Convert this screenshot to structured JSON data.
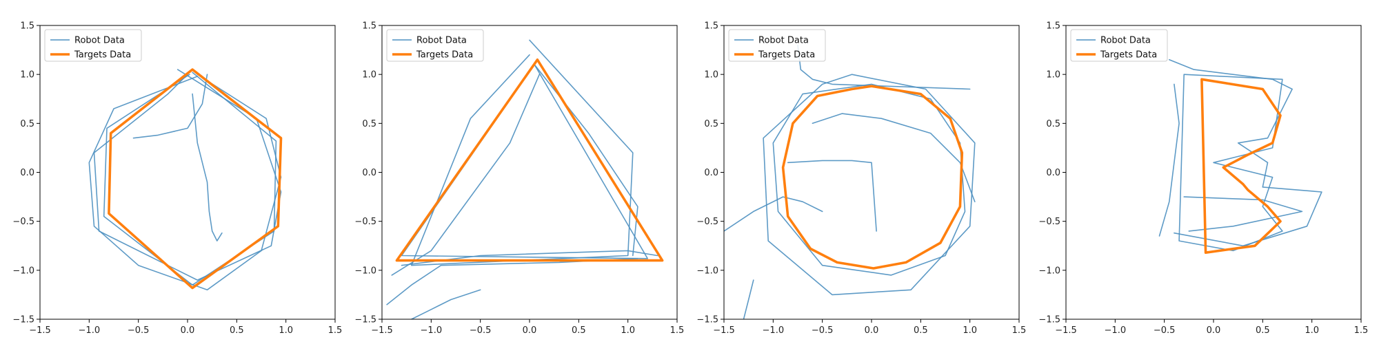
{
  "colors": {
    "robot": "#4b8fc0",
    "target": "#ff7f0e",
    "axis": "#000000",
    "legend_border": "#cccccc"
  },
  "chart_data": [
    {
      "type": "line",
      "title": "",
      "xlabel": "",
      "ylabel": "",
      "xlim": [
        -1.5,
        1.5
      ],
      "ylim": [
        -1.5,
        1.5
      ],
      "xticks": [
        -1.5,
        -1.0,
        -0.5,
        0.0,
        0.5,
        1.0,
        1.5
      ],
      "yticks": [
        -1.5,
        -1.0,
        -0.5,
        0.0,
        0.5,
        1.0,
        1.5
      ],
      "tick_labels_x": [
        "−1.5",
        "−1.0",
        "−0.5",
        "0.0",
        "0.5",
        "1.0",
        "1.5"
      ],
      "tick_labels_y": [
        "−1.5",
        "−1.0",
        "−0.5",
        "0.0",
        "0.5",
        "1.0",
        "1.5"
      ],
      "grid": false,
      "legend": {
        "placement": "top-left",
        "entries": [
          "Robot Data",
          "Targets Data"
        ]
      },
      "series": [
        {
          "name": "Targets Data",
          "kind": "target",
          "x": [
            0.05,
            0.95,
            0.92,
            0.05,
            -0.8,
            -0.78,
            0.05
          ],
          "y": [
            1.05,
            0.35,
            -0.55,
            -1.18,
            -0.42,
            0.4,
            1.05
          ]
        },
        {
          "name": "Robot Data",
          "kind": "robot",
          "x": [
            0.05,
            0.9,
            0.88,
            0.05,
            -0.85,
            -0.82,
            0.02
          ],
          "y": [
            1.02,
            0.32,
            -0.6,
            -1.15,
            -0.45,
            0.45,
            1.0
          ]
        },
        {
          "name": "Robot Data",
          "kind": "robot",
          "x": [
            -0.1,
            0.7,
            0.95,
            0.85,
            0.1,
            -0.9,
            -0.95,
            -0.2,
            0.0
          ],
          "y": [
            1.05,
            0.55,
            -0.2,
            -0.75,
            -1.1,
            -0.6,
            0.2,
            0.8,
            1.0
          ]
        },
        {
          "name": "Robot Data",
          "kind": "robot",
          "x": [
            0.1,
            -0.75,
            -1.0,
            -0.95,
            -0.5,
            0.2,
            0.75,
            0.95,
            0.8,
            0.1
          ],
          "y": [
            0.98,
            0.65,
            0.1,
            -0.55,
            -0.95,
            -1.2,
            -0.8,
            -0.05,
            0.55,
            1.0
          ]
        },
        {
          "name": "Robot Data",
          "kind": "robot",
          "x": [
            0.05,
            0.1,
            0.2,
            0.22,
            0.25,
            0.3,
            0.35
          ],
          "y": [
            0.8,
            0.3,
            -0.1,
            -0.4,
            -0.6,
            -0.7,
            -0.62
          ]
        },
        {
          "name": "Robot Data",
          "kind": "robot",
          "x": [
            -0.55,
            -0.3,
            0.0,
            0.15,
            0.2
          ],
          "y": [
            0.35,
            0.38,
            0.45,
            0.7,
            1.0
          ]
        }
      ]
    },
    {
      "type": "line",
      "title": "",
      "xlabel": "",
      "ylabel": "",
      "xlim": [
        -1.5,
        1.5
      ],
      "ylim": [
        -1.5,
        1.5
      ],
      "xticks": [
        -1.5,
        -1.0,
        -0.5,
        0.0,
        0.5,
        1.0,
        1.5
      ],
      "yticks": [
        -1.5,
        -1.0,
        -0.5,
        0.0,
        0.5,
        1.0,
        1.5
      ],
      "tick_labels_x": [
        "−1.5",
        "−1.0",
        "−0.5",
        "0.0",
        "0.5",
        "1.0",
        "1.5"
      ],
      "tick_labels_y": [
        "−1.5",
        "−1.0",
        "−0.5",
        "0.0",
        "0.5",
        "1.0",
        "1.5"
      ],
      "grid": false,
      "legend": {
        "placement": "top-left",
        "entries": [
          "Robot Data",
          "Targets Data"
        ]
      },
      "series": [
        {
          "name": "Targets Data",
          "kind": "target",
          "x": [
            0.08,
            1.35,
            -1.35,
            0.08
          ],
          "y": [
            1.15,
            -0.9,
            -0.9,
            1.15
          ]
        },
        {
          "name": "Robot Data",
          "kind": "robot",
          "x": [
            0.05,
            1.2,
            -1.3,
            0.05
          ],
          "y": [
            1.1,
            -0.88,
            -0.85,
            1.1
          ]
        },
        {
          "name": "Robot Data",
          "kind": "robot",
          "x": [
            0.0,
            1.05,
            1.0,
            -1.2,
            -0.6,
            0.0
          ],
          "y": [
            1.35,
            0.2,
            -0.85,
            -0.95,
            0.55,
            1.2
          ]
        },
        {
          "name": "Robot Data",
          "kind": "robot",
          "x": [
            -1.45,
            -1.2,
            -0.9,
            0.3,
            1.1
          ],
          "y": [
            -1.35,
            -1.15,
            -0.95,
            -0.92,
            -0.88
          ]
        },
        {
          "name": "Robot Data",
          "kind": "robot",
          "x": [
            0.05,
            0.6,
            1.1,
            1.05
          ],
          "y": [
            1.1,
            0.4,
            -0.35,
            -0.85
          ]
        },
        {
          "name": "Robot Data",
          "kind": "robot",
          "x": [
            -1.4,
            -1.0,
            -0.2,
            0.1
          ],
          "y": [
            -1.05,
            -0.8,
            0.3,
            1.0
          ]
        },
        {
          "name": "Robot Data",
          "kind": "robot",
          "x": [
            -1.3,
            -0.5,
            0.4,
            1.0,
            1.3
          ],
          "y": [
            -0.95,
            -0.85,
            -0.82,
            -0.8,
            -0.85
          ]
        },
        {
          "name": "Robot Data",
          "kind": "robot",
          "x": [
            -1.2,
            -1.0,
            -0.8,
            -0.5
          ],
          "y": [
            -1.5,
            -1.4,
            -1.3,
            -1.2
          ]
        }
      ]
    },
    {
      "type": "line",
      "title": "",
      "xlabel": "",
      "ylabel": "",
      "xlim": [
        -1.5,
        1.5
      ],
      "ylim": [
        -1.5,
        1.5
      ],
      "xticks": [
        -1.5,
        -1.0,
        -0.5,
        0.0,
        0.5,
        1.0,
        1.5
      ],
      "yticks": [
        -1.5,
        -1.0,
        -0.5,
        0.0,
        0.5,
        1.0,
        1.5
      ],
      "tick_labels_x": [
        "−1.5",
        "−1.0",
        "−0.5",
        "0.0",
        "0.5",
        "1.0",
        "1.5"
      ],
      "tick_labels_y": [
        "−1.5",
        "−1.0",
        "−0.5",
        "0.0",
        "0.5",
        "1.0",
        "1.5"
      ],
      "grid": false,
      "legend": {
        "placement": "top-left",
        "entries": [
          "Robot Data",
          "Targets Data"
        ]
      },
      "series": [
        {
          "name": "Targets Data",
          "kind": "target",
          "x": [
            0.0,
            0.5,
            0.8,
            0.92,
            0.9,
            0.7,
            0.35,
            0.02,
            -0.35,
            -0.62,
            -0.85,
            -0.9,
            -0.8,
            -0.55,
            -0.2,
            0.0
          ],
          "y": [
            0.88,
            0.8,
            0.55,
            0.2,
            -0.35,
            -0.72,
            -0.92,
            -0.98,
            -0.92,
            -0.78,
            -0.45,
            0.05,
            0.5,
            0.78,
            0.85,
            0.88
          ]
        },
        {
          "name": "Robot Data",
          "kind": "robot",
          "x": [
            0.0,
            0.6,
            0.9,
            0.95,
            0.75,
            0.2,
            -0.5,
            -0.95,
            -1.0,
            -0.7,
            0.0
          ],
          "y": [
            0.9,
            0.75,
            0.3,
            -0.4,
            -0.85,
            -1.05,
            -0.95,
            -0.4,
            0.3,
            0.8,
            0.9
          ]
        },
        {
          "name": "Robot Data",
          "kind": "robot",
          "x": [
            -0.2,
            0.55,
            1.05,
            1.0,
            0.4,
            -0.4,
            -1.05,
            -1.1,
            -0.5,
            -0.2
          ],
          "y": [
            1.0,
            0.85,
            0.3,
            -0.55,
            -1.2,
            -1.25,
            -0.7,
            0.35,
            0.9,
            1.0
          ]
        },
        {
          "name": "Robot Data",
          "kind": "robot",
          "x": [
            -0.85,
            -0.5,
            -0.2,
            0.0,
            0.05
          ],
          "y": [
            0.1,
            0.12,
            0.12,
            0.1,
            -0.6
          ]
        },
        {
          "name": "Robot Data",
          "kind": "robot",
          "x": [
            -1.5,
            -1.2,
            -0.9,
            -0.7,
            -0.5
          ],
          "y": [
            -0.6,
            -0.4,
            -0.25,
            -0.3,
            -0.4
          ]
        },
        {
          "name": "Robot Data",
          "kind": "robot",
          "x": [
            -0.6,
            -0.3,
            0.1,
            0.6,
            0.9,
            1.05
          ],
          "y": [
            0.5,
            0.6,
            0.55,
            0.4,
            0.1,
            -0.3
          ]
        },
        {
          "name": "Robot Data",
          "kind": "robot",
          "x": [
            -0.75,
            -0.72,
            -0.6,
            -0.4,
            1.0
          ],
          "y": [
            1.3,
            1.05,
            0.95,
            0.9,
            0.85
          ]
        },
        {
          "name": "Robot Data",
          "kind": "robot",
          "x": [
            -1.2,
            -1.25,
            -1.3
          ],
          "y": [
            -1.1,
            -1.3,
            -1.5
          ]
        }
      ]
    },
    {
      "type": "line",
      "title": "",
      "xlabel": "",
      "ylabel": "",
      "xlim": [
        -1.5,
        1.5
      ],
      "ylim": [
        -1.5,
        1.5
      ],
      "xticks": [
        -1.5,
        -1.0,
        -0.5,
        0.0,
        0.5,
        1.0,
        1.5
      ],
      "yticks": [
        -1.5,
        -1.0,
        -0.5,
        0.0,
        0.5,
        1.0,
        1.5
      ],
      "tick_labels_x": [
        "−1.5",
        "−1.0",
        "−0.5",
        "0.0",
        "0.5",
        "1.0",
        "1.5"
      ],
      "tick_labels_y": [
        "−1.5",
        "−1.0",
        "−0.5",
        "0.0",
        "0.5",
        "1.0",
        "1.5"
      ],
      "grid": false,
      "legend": {
        "placement": "top-left",
        "entries": [
          "Robot Data",
          "Targets Data"
        ]
      },
      "series": [
        {
          "name": "Targets Data",
          "kind": "target",
          "x": [
            -0.12,
            0.5,
            0.68,
            0.6,
            0.35,
            0.1,
            0.3,
            0.35,
            0.55,
            0.68,
            0.42,
            -0.08,
            -0.12
          ],
          "y": [
            0.95,
            0.85,
            0.58,
            0.3,
            0.18,
            0.05,
            -0.12,
            -0.18,
            -0.35,
            -0.5,
            -0.75,
            -0.82,
            0.95
          ]
        },
        {
          "name": "Robot Data",
          "kind": "robot",
          "x": [
            -0.3,
            0.7,
            0.6,
            0.0,
            0.6,
            0.5,
            0.7,
            0.2,
            -0.35,
            -0.3
          ],
          "y": [
            1.0,
            0.95,
            0.25,
            0.1,
            -0.05,
            -0.35,
            -0.6,
            -0.8,
            -0.7,
            1.0
          ]
        },
        {
          "name": "Robot Data",
          "kind": "robot",
          "x": [
            -0.45,
            -0.2,
            0.6,
            0.8,
            0.55,
            0.25,
            0.55,
            0.5,
            1.1,
            0.95,
            0.3,
            -0.4
          ],
          "y": [
            1.15,
            1.05,
            0.95,
            0.85,
            0.35,
            0.3,
            0.1,
            -0.15,
            -0.2,
            -0.55,
            -0.75,
            -0.62
          ]
        },
        {
          "name": "Robot Data",
          "kind": "robot",
          "x": [
            -0.55,
            -0.45,
            -0.4,
            -0.35,
            -0.4
          ],
          "y": [
            -0.65,
            -0.3,
            0.1,
            0.5,
            0.9
          ]
        },
        {
          "name": "Robot Data",
          "kind": "robot",
          "x": [
            -0.3,
            0.5,
            0.9,
            0.2,
            -0.25
          ],
          "y": [
            -0.25,
            -0.28,
            -0.4,
            -0.55,
            -0.6
          ]
        }
      ]
    }
  ]
}
